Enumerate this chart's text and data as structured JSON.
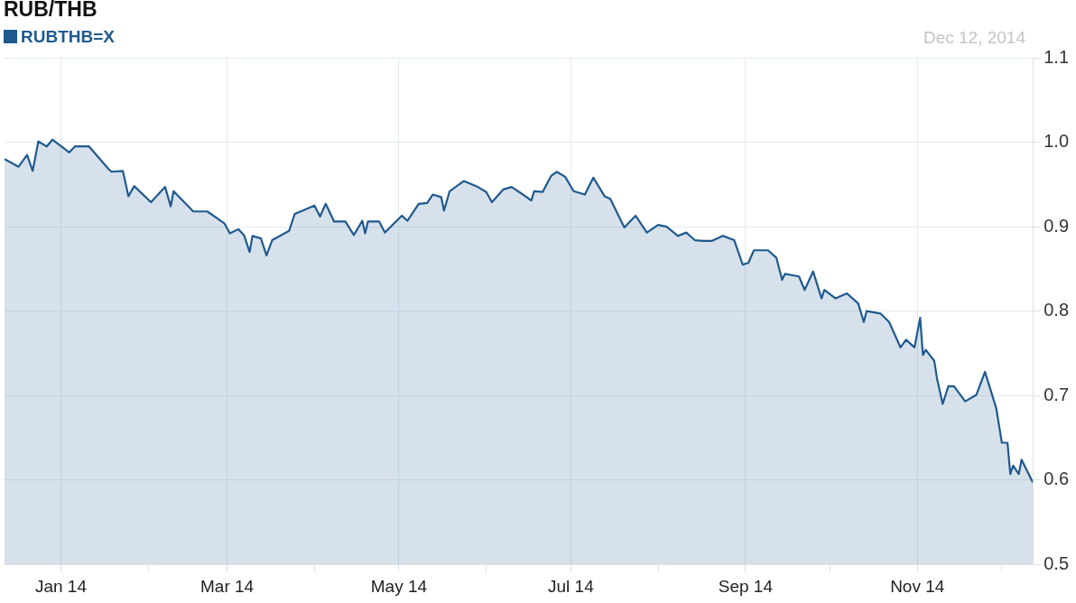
{
  "chart_data": {
    "type": "area",
    "title": "RUB/THB",
    "annotations": [
      "Dec 12, 2014"
    ],
    "legend": "top left",
    "grid": true,
    "xlim": [
      "2013-12-12",
      "2014-12-12"
    ],
    "ylim": [
      0.5,
      1.1
    ],
    "yticks": [
      0.5,
      0.6,
      0.7,
      0.8,
      0.9,
      {
        "value": 1.0,
        "label": "1.0"
      },
      1.1
    ],
    "xticks": [
      {
        "value": "2014-01-01",
        "label": "Jan 14"
      },
      {
        "value": "2014-02-01",
        "label": null
      },
      {
        "value": "2014-03-01",
        "label": "Mar 14"
      },
      {
        "value": "2014-04-01",
        "label": null
      },
      {
        "value": "2014-05-01",
        "label": "May 14"
      },
      {
        "value": "2014-06-01",
        "label": null
      },
      {
        "value": "2014-07-01",
        "label": "Jul 14"
      },
      {
        "value": "2014-08-01",
        "label": null
      },
      {
        "value": "2014-09-01",
        "label": "Sep 14"
      },
      {
        "value": "2014-10-01",
        "label": null
      },
      {
        "value": "2014-11-01",
        "label": "Nov 14"
      },
      {
        "value": "2014-12-01",
        "label": null
      }
    ],
    "series": [
      {
        "name": "RUBTHB=X",
        "color": "#1f5a8f",
        "x": [
          "2013-12-12",
          "2013-12-17",
          "2013-12-20",
          "2013-12-22",
          "2013-12-24",
          "2013-12-27",
          "2013-12-29",
          "2014-01-04",
          "2014-01-06",
          "2014-01-11",
          "2014-01-18",
          "2014-01-19",
          "2014-01-23",
          "2014-01-25",
          "2014-01-27",
          "2014-02-02",
          "2014-02-07",
          "2014-02-09",
          "2014-02-10",
          "2014-02-17",
          "2014-02-22",
          "2014-02-28",
          "2014-03-02",
          "2014-03-05",
          "2014-03-07",
          "2014-03-09",
          "2014-03-10",
          "2014-03-13",
          "2014-03-15",
          "2014-03-17",
          "2014-03-23",
          "2014-03-25",
          "2014-04-01",
          "2014-04-03",
          "2014-04-05",
          "2014-04-08",
          "2014-04-12",
          "2014-04-15",
          "2014-04-18",
          "2014-04-19",
          "2014-04-20",
          "2014-04-24",
          "2014-04-26",
          "2014-05-02",
          "2014-05-04",
          "2014-05-08",
          "2014-05-11",
          "2014-05-13",
          "2014-05-16",
          "2014-05-17",
          "2014-05-19",
          "2014-05-24",
          "2014-05-29",
          "2014-06-01",
          "2014-06-03",
          "2014-06-07",
          "2014-06-10",
          "2014-06-14",
          "2014-06-17",
          "2014-06-18",
          "2014-06-21",
          "2014-06-24",
          "2014-06-26",
          "2014-06-29",
          "2014-07-02",
          "2014-07-06",
          "2014-07-09",
          "2014-07-13",
          "2014-07-15",
          "2014-07-20",
          "2014-07-24",
          "2014-07-28",
          "2014-08-01",
          "2014-08-04",
          "2014-08-08",
          "2014-08-11",
          "2014-08-14",
          "2014-08-17",
          "2014-08-20",
          "2014-08-24",
          "2014-08-28",
          "2014-08-31",
          "2014-09-02",
          "2014-09-04",
          "2014-09-09",
          "2014-09-12",
          "2014-09-14",
          "2014-09-15",
          "2014-09-20",
          "2014-09-22",
          "2014-09-25",
          "2014-09-28",
          "2014-09-29",
          "2014-10-03",
          "2014-10-07",
          "2014-10-11",
          "2014-10-13",
          "2014-10-14",
          "2014-10-19",
          "2014-10-22",
          "2014-10-26",
          "2014-10-28",
          "2014-10-31",
          "2014-11-02",
          "2014-11-03",
          "2014-11-04",
          "2014-11-07",
          "2014-11-08",
          "2014-11-10",
          "2014-11-12",
          "2014-11-14",
          "2014-11-18",
          "2014-11-22",
          "2014-11-25",
          "2014-11-29",
          "2014-12-01",
          "2014-12-03",
          "2014-12-04",
          "2014-12-05",
          "2014-12-07",
          "2014-12-08",
          "2014-12-12"
        ],
        "values": [
          0.98,
          0.971,
          0.985,
          0.966,
          1.001,
          0.995,
          1.003,
          0.988,
          0.995,
          0.995,
          0.968,
          0.965,
          0.966,
          0.936,
          0.948,
          0.929,
          0.947,
          0.924,
          0.942,
          0.918,
          0.918,
          0.904,
          0.892,
          0.897,
          0.89,
          0.87,
          0.889,
          0.886,
          0.866,
          0.884,
          0.895,
          0.915,
          0.925,
          0.912,
          0.927,
          0.906,
          0.906,
          0.89,
          0.907,
          0.892,
          0.906,
          0.906,
          0.893,
          0.913,
          0.907,
          0.927,
          0.928,
          0.938,
          0.935,
          0.919,
          0.942,
          0.954,
          0.947,
          0.941,
          0.929,
          0.944,
          0.947,
          0.938,
          0.931,
          0.942,
          0.941,
          0.96,
          0.965,
          0.959,
          0.942,
          0.938,
          0.958,
          0.936,
          0.933,
          0.899,
          0.913,
          0.893,
          0.902,
          0.9,
          0.889,
          0.893,
          0.884,
          0.883,
          0.883,
          0.889,
          0.884,
          0.855,
          0.857,
          0.872,
          0.872,
          0.863,
          0.837,
          0.844,
          0.841,
          0.825,
          0.847,
          0.815,
          0.825,
          0.815,
          0.821,
          0.809,
          0.787,
          0.8,
          0.797,
          0.787,
          0.757,
          0.766,
          0.757,
          0.792,
          0.748,
          0.754,
          0.741,
          0.72,
          0.69,
          0.711,
          0.711,
          0.693,
          0.701,
          0.728,
          0.685,
          0.644,
          0.644,
          0.607,
          0.617,
          0.607,
          0.624,
          0.597
        ]
      }
    ]
  }
}
